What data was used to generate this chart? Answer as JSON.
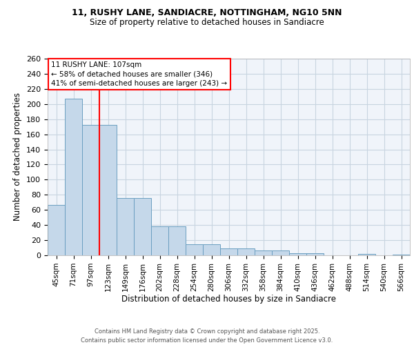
{
  "title_line1": "11, RUSHY LANE, SANDIACRE, NOTTINGHAM, NG10 5NN",
  "title_line2": "Size of property relative to detached houses in Sandiacre",
  "xlabel": "Distribution of detached houses by size in Sandiacre",
  "ylabel": "Number of detached properties",
  "categories": [
    "45sqm",
    "71sqm",
    "97sqm",
    "123sqm",
    "149sqm",
    "176sqm",
    "202sqm",
    "228sqm",
    "254sqm",
    "280sqm",
    "306sqm",
    "332sqm",
    "358sqm",
    "384sqm",
    "410sqm",
    "436sqm",
    "462sqm",
    "488sqm",
    "514sqm",
    "540sqm",
    "566sqm"
  ],
  "bar_heights": [
    67,
    207,
    172,
    172,
    76,
    76,
    38,
    38,
    15,
    15,
    9,
    9,
    6,
    6,
    3,
    3,
    0,
    0,
    2,
    0,
    1
  ],
  "bar_color": "#c5d8ea",
  "bar_edge_color": "#6a9ec0",
  "red_line_x": 2.5,
  "annotation_text": "11 RUSHY LANE: 107sqm\n← 58% of detached houses are smaller (346)\n41% of semi-detached houses are larger (243) →",
  "footer_line1": "Contains HM Land Registry data © Crown copyright and database right 2025.",
  "footer_line2": "Contains public sector information licensed under the Open Government Licence v3.0.",
  "bg_color": "#ffffff",
  "plot_bg_color": "#f0f4fa",
  "grid_color": "#c8d4e0",
  "ylim_max": 260,
  "yticks": [
    0,
    20,
    40,
    60,
    80,
    100,
    120,
    140,
    160,
    180,
    200,
    220,
    240,
    260
  ]
}
